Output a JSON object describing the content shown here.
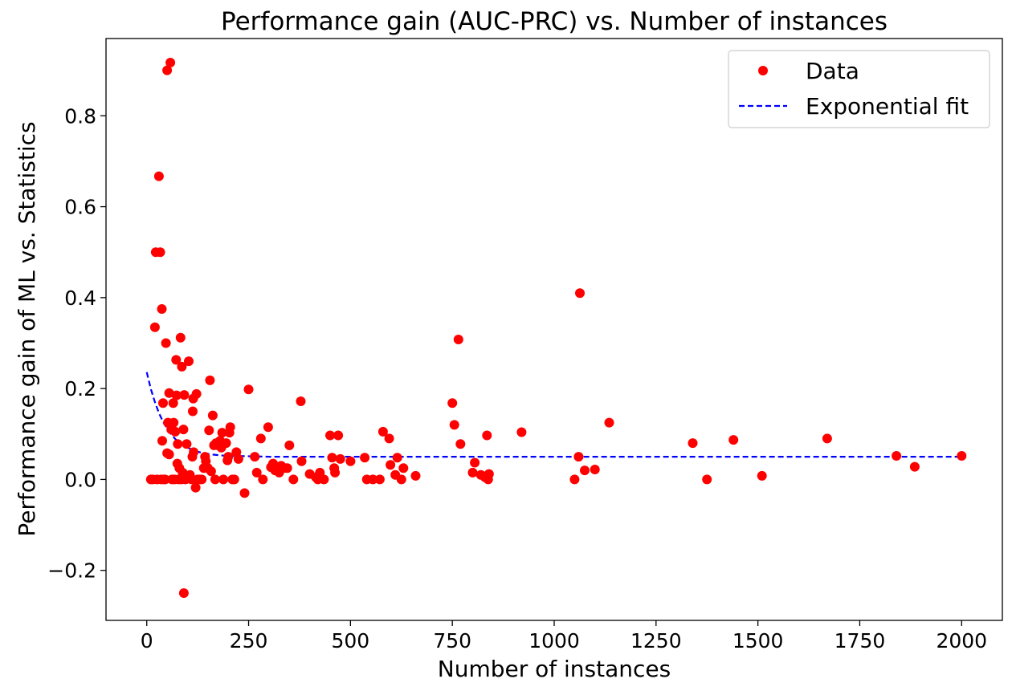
{
  "chart_data": {
    "type": "scatter",
    "title": "Performance gain (AUC-PRC) vs. Number of instances",
    "xlabel": "Number of instances",
    "ylabel": "Performance gain of ML vs. Statistics",
    "xlim": [
      -100,
      2100
    ],
    "ylim": [
      -0.31,
      0.97
    ],
    "xticks": [
      0,
      250,
      500,
      750,
      1000,
      1250,
      1500,
      1750,
      2000
    ],
    "xtick_labels": [
      "0",
      "250",
      "500",
      "750",
      "1000",
      "1250",
      "1500",
      "1750",
      "2000"
    ],
    "yticks": [
      -0.2,
      0.0,
      0.2,
      0.4,
      0.6,
      0.8
    ],
    "ytick_labels": [
      "−0.2",
      "0.0",
      "0.2",
      "0.4",
      "0.6",
      "0.8"
    ],
    "grid": false,
    "legend": {
      "placement": "top-right",
      "entries": [
        "Data",
        "Exponential fit"
      ]
    },
    "colors": {
      "data": "#ff0000",
      "fit": "#0000ff"
    },
    "series": [
      {
        "name": "Data",
        "style": "markers",
        "points": [
          [
            10,
            0
          ],
          [
            15,
            0
          ],
          [
            20,
            0.335
          ],
          [
            22,
            0.5
          ],
          [
            25,
            0
          ],
          [
            30,
            0.667
          ],
          [
            33,
            0.5
          ],
          [
            35,
            0
          ],
          [
            37,
            0.375
          ],
          [
            38,
            0.085
          ],
          [
            40,
            0.168
          ],
          [
            42,
            0
          ],
          [
            45,
            0
          ],
          [
            47,
            0.3
          ],
          [
            50,
            0.058
          ],
          [
            50,
            0.9
          ],
          [
            52,
            0.125
          ],
          [
            55,
            0.055
          ],
          [
            55,
            0.19
          ],
          [
            58,
            0.917
          ],
          [
            60,
            0.11
          ],
          [
            62,
            0
          ],
          [
            65,
            0.168
          ],
          [
            66,
            0.125
          ],
          [
            68,
            0
          ],
          [
            70,
            0.105
          ],
          [
            72,
            0.263
          ],
          [
            73,
            0.185
          ],
          [
            75,
            0.035
          ],
          [
            76,
            0.078
          ],
          [
            78,
            0
          ],
          [
            80,
            0.025
          ],
          [
            83,
            0.312
          ],
          [
            85,
            0
          ],
          [
            86,
            0.248
          ],
          [
            88,
            0.015
          ],
          [
            90,
            0.11
          ],
          [
            91,
            -0.25
          ],
          [
            92,
            0.186
          ],
          [
            95,
            0
          ],
          [
            98,
            0.078
          ],
          [
            100,
            0.005
          ],
          [
            103,
            0.26
          ],
          [
            106,
            0.01
          ],
          [
            110,
            0
          ],
          [
            112,
            0.05
          ],
          [
            113,
            0.15
          ],
          [
            114,
            0.178
          ],
          [
            115,
            0.06
          ],
          [
            120,
            -0.018
          ],
          [
            122,
            0.188
          ],
          [
            125,
            0
          ],
          [
            130,
            0
          ],
          [
            135,
            0
          ],
          [
            140,
            0.025
          ],
          [
            143,
            0.05
          ],
          [
            145,
            0.04
          ],
          [
            150,
            0.025
          ],
          [
            153,
            0.108
          ],
          [
            155,
            0.218
          ],
          [
            158,
            0.018
          ],
          [
            162,
            0.141
          ],
          [
            165,
            0.075
          ],
          [
            168,
            0
          ],
          [
            170,
            0.08
          ],
          [
            175,
            0.075
          ],
          [
            180,
            0.085
          ],
          [
            183,
            0.07
          ],
          [
            185,
            0.103
          ],
          [
            188,
            0
          ],
          [
            195,
            0.08
          ],
          [
            198,
            0.042
          ],
          [
            200,
            0.05
          ],
          [
            203,
            0.103
          ],
          [
            205,
            0.115
          ],
          [
            210,
            0
          ],
          [
            215,
            0
          ],
          [
            220,
            0.06
          ],
          [
            225,
            0.045
          ],
          [
            240,
            -0.03
          ],
          [
            250,
            0.198
          ],
          [
            265,
            0.05
          ],
          [
            270,
            0.015
          ],
          [
            280,
            0.09
          ],
          [
            285,
            0
          ],
          [
            298,
            0.115
          ],
          [
            305,
            0.027
          ],
          [
            310,
            0.035
          ],
          [
            315,
            0.02
          ],
          [
            325,
            0.015
          ],
          [
            330,
            0.03
          ],
          [
            338,
            0.025
          ],
          [
            345,
            0.025
          ],
          [
            350,
            0.075
          ],
          [
            360,
            0
          ],
          [
            378,
            0.172
          ],
          [
            380,
            0.04
          ],
          [
            400,
            0.012
          ],
          [
            415,
            0.005
          ],
          [
            420,
            0
          ],
          [
            425,
            0.015
          ],
          [
            435,
            0
          ],
          [
            450,
            0.097
          ],
          [
            455,
            0.048
          ],
          [
            460,
            0.025
          ],
          [
            462,
            0.015
          ],
          [
            470,
            0.097
          ],
          [
            475,
            0.045
          ],
          [
            500,
            0.04
          ],
          [
            535,
            0.048
          ],
          [
            540,
            0
          ],
          [
            555,
            0
          ],
          [
            572,
            0
          ],
          [
            580,
            0.105
          ],
          [
            595,
            0.09
          ],
          [
            598,
            0.032
          ],
          [
            610,
            0.01
          ],
          [
            615,
            0.048
          ],
          [
            625,
            0
          ],
          [
            630,
            0.025
          ],
          [
            660,
            0.008
          ],
          [
            750,
            0.168
          ],
          [
            755,
            0.12
          ],
          [
            765,
            0.308
          ],
          [
            770,
            0.078
          ],
          [
            800,
            0.015
          ],
          [
            805,
            0.037
          ],
          [
            820,
            0.01
          ],
          [
            830,
            0.005
          ],
          [
            835,
            0.097
          ],
          [
            838,
            0
          ],
          [
            840,
            0.012
          ],
          [
            920,
            0.104
          ],
          [
            1050,
            0
          ],
          [
            1060,
            0.05
          ],
          [
            1063,
            0.41
          ],
          [
            1075,
            0.02
          ],
          [
            1100,
            0.022
          ],
          [
            1135,
            0.125
          ],
          [
            1340,
            0.08
          ],
          [
            1375,
            0
          ],
          [
            1440,
            0.087
          ],
          [
            1510,
            0.008
          ],
          [
            1670,
            0.09
          ],
          [
            1840,
            0.052
          ],
          [
            1885,
            0.028
          ],
          [
            2000,
            0.052
          ]
        ]
      },
      {
        "name": "Exponential fit",
        "style": "dashed-line",
        "model": "y = 0.05 + 0.186 * exp(-x / 45)",
        "x": [
          0,
          10,
          20,
          30,
          40,
          50,
          60,
          70,
          80,
          90,
          100,
          120,
          140,
          160,
          180,
          200,
          250,
          300,
          350,
          400,
          500,
          600,
          800,
          1000,
          1250,
          1500,
          1750,
          2000
        ],
        "y": [
          0.236,
          0.199,
          0.17,
          0.146,
          0.127,
          0.112,
          0.099,
          0.089,
          0.081,
          0.075,
          0.07,
          0.062,
          0.058,
          0.055,
          0.053,
          0.052,
          0.051,
          0.05,
          0.05,
          0.05,
          0.05,
          0.05,
          0.05,
          0.05,
          0.05,
          0.05,
          0.05,
          0.05
        ]
      }
    ]
  }
}
